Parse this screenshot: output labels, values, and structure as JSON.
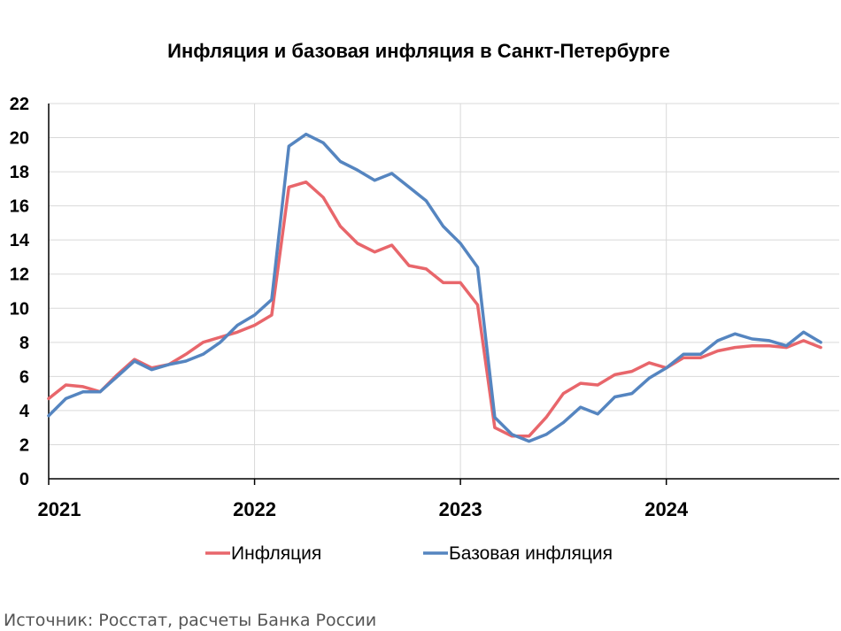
{
  "chart_data": {
    "type": "line",
    "title": "Инфляция и базовая инфляция в Санкт-Петербурге",
    "x": [
      "2021-01",
      "2021-02",
      "2021-03",
      "2021-04",
      "2021-05",
      "2021-06",
      "2021-07",
      "2021-08",
      "2021-09",
      "2021-10",
      "2021-11",
      "2021-12",
      "2022-01",
      "2022-02",
      "2022-03",
      "2022-04",
      "2022-05",
      "2022-06",
      "2022-07",
      "2022-08",
      "2022-09",
      "2022-10",
      "2022-11",
      "2022-12",
      "2023-01",
      "2023-02",
      "2023-03",
      "2023-04",
      "2023-05",
      "2023-06",
      "2023-07",
      "2023-08",
      "2023-09",
      "2023-10",
      "2023-11",
      "2023-12",
      "2024-01",
      "2024-02",
      "2024-03",
      "2024-04",
      "2024-05",
      "2024-06",
      "2024-07",
      "2024-08",
      "2024-09",
      "2024-10"
    ],
    "xticks": [
      "2021",
      "2022",
      "2023",
      "2024"
    ],
    "ylim": [
      0,
      22
    ],
    "yticks": [
      0,
      2,
      4,
      6,
      8,
      10,
      12,
      14,
      16,
      18,
      20,
      22
    ],
    "grid": true,
    "legend_position": "bottom",
    "series": [
      {
        "name": "Инфляция",
        "color": "#e8666b",
        "values": [
          4.7,
          5.5,
          5.4,
          5.1,
          6.1,
          7.0,
          6.5,
          6.7,
          7.3,
          8.0,
          8.3,
          8.6,
          9.0,
          9.6,
          17.1,
          17.4,
          16.5,
          14.8,
          13.8,
          13.3,
          13.7,
          12.5,
          12.3,
          11.5,
          11.5,
          10.2,
          3.0,
          2.5,
          2.5,
          3.6,
          5.0,
          5.6,
          5.5,
          6.1,
          6.3,
          6.8,
          6.5,
          7.1,
          7.1,
          7.5,
          7.7,
          7.8,
          7.8,
          7.7,
          8.1,
          7.7
        ]
      },
      {
        "name": "Базовая инфляция",
        "color": "#5585c0",
        "values": [
          3.7,
          4.7,
          5.1,
          5.1,
          6.0,
          6.9,
          6.4,
          6.7,
          6.9,
          7.3,
          8.0,
          9.0,
          9.6,
          10.5,
          19.5,
          20.2,
          19.7,
          18.6,
          18.1,
          17.5,
          17.9,
          17.1,
          16.3,
          14.8,
          13.8,
          12.4,
          3.6,
          2.6,
          2.2,
          2.6,
          3.3,
          4.2,
          3.8,
          4.8,
          5.0,
          5.9,
          6.5,
          7.3,
          7.3,
          8.1,
          8.5,
          8.2,
          8.1,
          7.8,
          8.6,
          8.0
        ]
      }
    ]
  },
  "source": "Источник: Росстат, расчеты Банка России"
}
